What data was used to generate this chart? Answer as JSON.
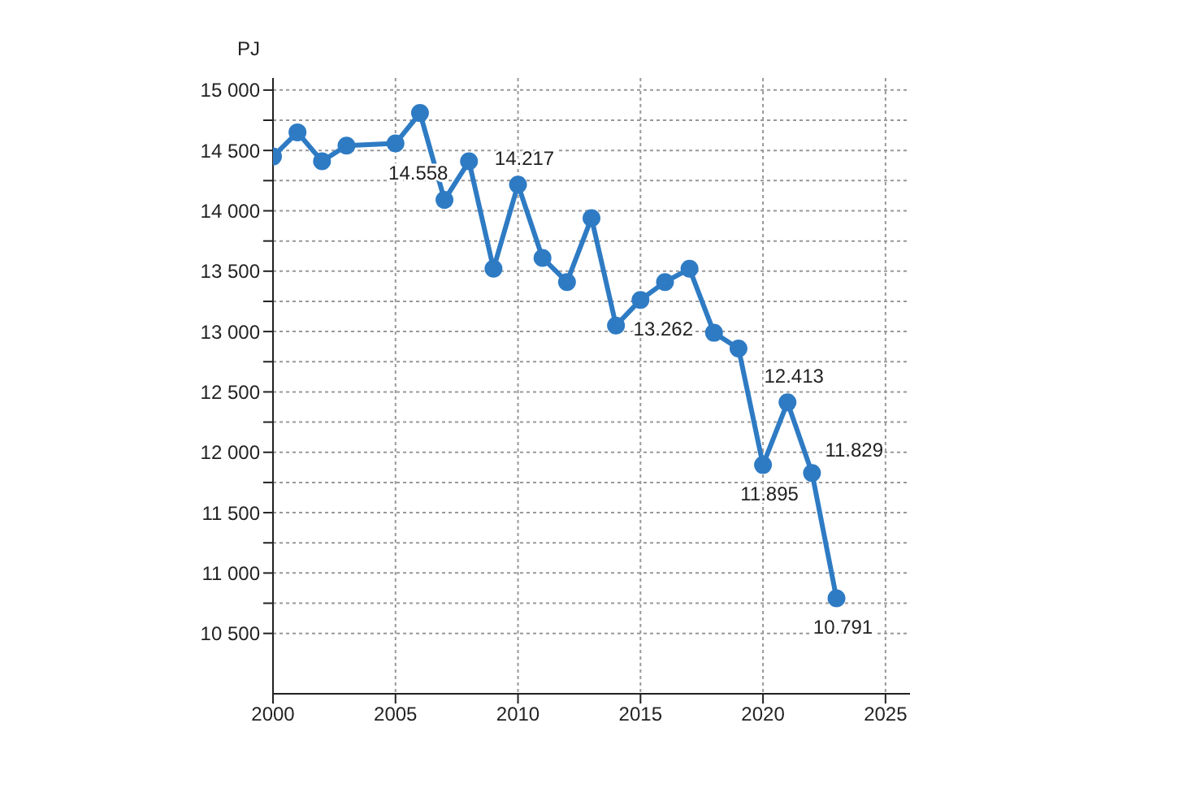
{
  "chart_data": {
    "type": "line",
    "ylabel": "PJ",
    "x": [
      2000,
      2001,
      2002,
      2003,
      2005,
      2006,
      2007,
      2008,
      2009,
      2010,
      2011,
      2012,
      2013,
      2014,
      2015,
      2016,
      2017,
      2018,
      2019,
      2020,
      2021,
      2022,
      2023
    ],
    "series": [
      {
        "color": "#2e7bc4",
        "values": [
          14450,
          14650,
          14410,
          14540,
          14558,
          14810,
          14090,
          14410,
          13520,
          14217,
          13610,
          13410,
          13940,
          13050,
          13262,
          13410,
          13520,
          12990,
          12860,
          11895,
          12413,
          11829,
          10791
        ],
        "value_labels": [
          null,
          null,
          null,
          null,
          "14.558",
          null,
          null,
          null,
          null,
          "14.217",
          null,
          null,
          null,
          null,
          "13.262",
          null,
          null,
          null,
          null,
          "11.895",
          "12.413",
          "11.829",
          "10.791"
        ]
      }
    ],
    "xlim": [
      2000,
      2026
    ],
    "xticks": [
      2000,
      2005,
      2010,
      2015,
      2020,
      2025
    ],
    "ylim": [
      10000,
      15100
    ],
    "yticks": [
      {
        "value": 10500,
        "label": "10 500"
      },
      {
        "value": 10750,
        "label": null
      },
      {
        "value": 11000,
        "label": "11 000"
      },
      {
        "value": 11250,
        "label": null
      },
      {
        "value": 11500,
        "label": "11 500"
      },
      {
        "value": 11750,
        "label": null
      },
      {
        "value": 12000,
        "label": "12 000"
      },
      {
        "value": 12250,
        "label": null
      },
      {
        "value": 12500,
        "label": "12 500"
      },
      {
        "value": 12750,
        "label": null
      },
      {
        "value": 13000,
        "label": "13 000"
      },
      {
        "value": 13250,
        "label": null
      },
      {
        "value": 13500,
        "label": "13 500"
      },
      {
        "value": 13750,
        "label": null
      },
      {
        "value": 14000,
        "label": "14 000"
      },
      {
        "value": 14250,
        "label": null
      },
      {
        "value": 14500,
        "label": "14 500"
      },
      {
        "value": 14750,
        "label": null
      },
      {
        "value": 15000,
        "label": "15 000"
      }
    ],
    "grid": true,
    "marker": "circle",
    "line_style": "solid",
    "legend": false
  }
}
